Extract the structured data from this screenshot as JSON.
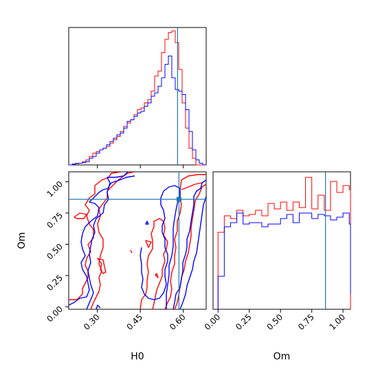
{
  "chart_data": [
    {
      "type": "histogram",
      "panel": "H0 marginal",
      "x_range": [
        0.2,
        0.68
      ],
      "bin_edges_start": 0.2,
      "bin_width": 0.012,
      "truth_line": 0.58,
      "series": [
        {
          "color": "#ff0000",
          "counts": [
            0,
            0.5,
            1,
            1,
            2,
            3,
            5,
            7,
            8,
            9,
            10,
            11,
            13,
            15,
            17,
            20,
            23,
            25,
            27,
            30,
            33,
            34,
            37,
            39,
            44,
            53,
            56,
            67,
            75,
            79,
            80,
            73,
            57,
            37,
            22,
            10,
            4,
            0,
            0,
            0
          ]
        },
        {
          "color": "#0000ff",
          "counts": [
            0,
            0.5,
            0.8,
            1,
            1.5,
            2,
            4,
            5,
            7,
            9,
            10,
            12,
            14,
            16,
            18,
            19,
            22,
            26,
            27,
            29,
            31,
            32,
            35,
            37,
            41,
            43,
            47,
            52,
            60,
            65,
            52,
            45,
            44,
            42,
            33,
            20,
            9,
            3,
            1,
            0
          ]
        }
      ]
    },
    {
      "type": "contour",
      "panel": "H0 vs Om",
      "x_range": [
        0.2,
        0.68
      ],
      "y_range": [
        -0.02,
        1.08
      ],
      "xlabel": "H0",
      "ylabel": "Om",
      "xticks": [
        "0.30",
        "0.45",
        "0.60"
      ],
      "yticks": [
        "0.00",
        "0.25",
        "0.50",
        "0.75",
        "1.00"
      ],
      "truth": {
        "x": 0.585,
        "y": 0.86
      },
      "series": [
        {
          "color": "#ff0000"
        },
        {
          "color": "#0000ff"
        }
      ]
    },
    {
      "type": "histogram",
      "panel": "Om marginal",
      "x_range": [
        -0.04,
        1.06
      ],
      "bin_edges_start": 0.0,
      "bin_width": 0.05,
      "truth_line": 0.86,
      "xlabel": "Om",
      "xticks": [
        "0.00",
        "0.25",
        "0.50",
        "0.75",
        "1.00"
      ],
      "series": [
        {
          "color": "#ff0000",
          "counts": [
            0.56,
            0.68,
            0.66,
            0.72,
            0.68,
            0.69,
            0.72,
            0.68,
            0.77,
            0.73,
            0.78,
            0.72,
            0.78,
            0.74,
            0.96,
            0.73,
            0.83,
            0.72,
            0.93,
            0.85,
            0.9,
            0.87,
            0.85,
            0,
            0
          ]
        },
        {
          "color": "#0000ff",
          "counts": [
            0.24,
            0.6,
            0.63,
            0.7,
            0.62,
            0.63,
            0.63,
            0.6,
            0.62,
            0.62,
            0.66,
            0.69,
            0.63,
            0.7,
            0.7,
            0.66,
            0.69,
            0.68,
            0.65,
            0.67,
            0.7,
            0.62,
            0.11,
            0.11,
            0.11
          ]
        }
      ]
    }
  ]
}
